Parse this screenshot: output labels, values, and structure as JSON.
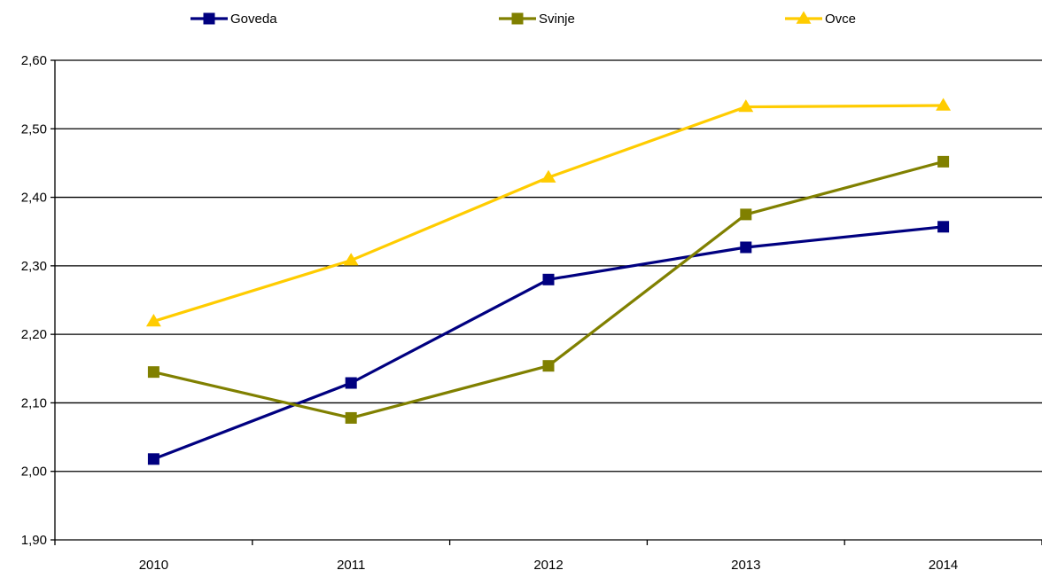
{
  "chart_data": {
    "type": "line",
    "categories": [
      "2010",
      "2011",
      "2012",
      "2013",
      "2014"
    ],
    "series": [
      {
        "name": "Goveda",
        "color": "#000080",
        "marker": "square",
        "values": [
          2.018,
          2.129,
          2.28,
          2.327,
          2.357
        ]
      },
      {
        "name": "Svinje",
        "color": "#808000",
        "marker": "square",
        "values": [
          2.145,
          2.078,
          2.154,
          2.375,
          2.452
        ]
      },
      {
        "name": "Ovce",
        "color": "#FFCC00",
        "marker": "triangle",
        "values": [
          2.219,
          2.308,
          2.429,
          2.532,
          2.534
        ]
      }
    ],
    "ylim": [
      1.9,
      2.6
    ],
    "yticks": [
      "1,90",
      "2,00",
      "2,10",
      "2,20",
      "2,30",
      "2,40",
      "2,50",
      "2,60"
    ],
    "grid": true,
    "legend_position": "top"
  }
}
